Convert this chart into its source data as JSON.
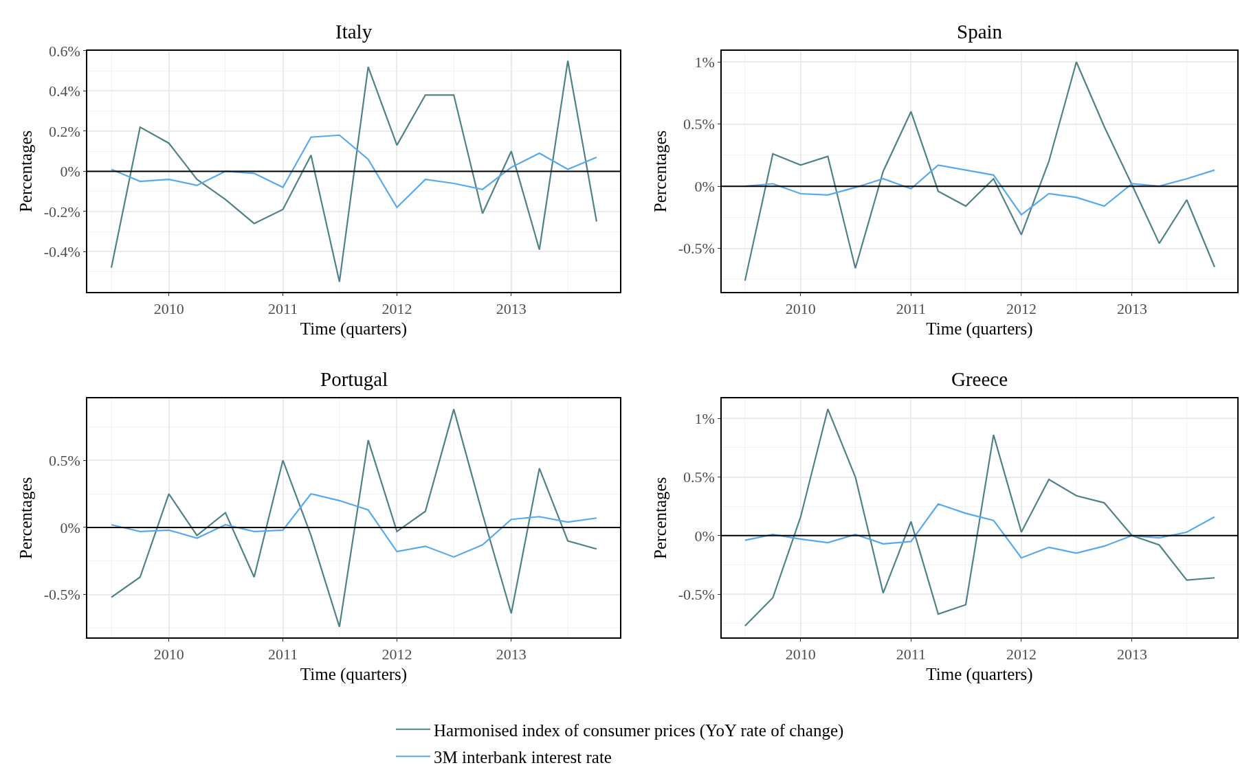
{
  "chart_data": [
    {
      "type": "line",
      "title": "Italy",
      "xlabel": "Time (quarters)",
      "ylabel": "Percentages",
      "x": [
        "2009-07",
        "2009-10",
        "2010-01",
        "2010-04",
        "2010-07",
        "2010-10",
        "2011-01",
        "2011-04",
        "2011-07",
        "2011-10",
        "2012-01",
        "2012-04",
        "2012-07",
        "2012-10",
        "2013-01",
        "2013-04",
        "2013-07",
        "2013-10"
      ],
      "series": [
        {
          "name": "Harmonised index of consumer prices (YoY rate of change)",
          "color": "#4e8287",
          "values": [
            -0.48,
            0.22,
            0.14,
            -0.04,
            -0.14,
            -0.26,
            -0.19,
            0.08,
            -0.55,
            0.52,
            0.13,
            0.38,
            0.38,
            -0.21,
            0.1,
            -0.39,
            0.55,
            -0.25
          ]
        },
        {
          "name": "3M interbank interest rate",
          "color": "#56a9ef",
          "values": [
            0.01,
            -0.05,
            -0.04,
            -0.07,
            0.0,
            -0.01,
            -0.08,
            0.17,
            0.18,
            0.06,
            -0.18,
            -0.04,
            -0.06,
            -0.09,
            0.02,
            0.09,
            0.01,
            0.07
          ]
        }
      ],
      "xlim": [
        "2009-04-15",
        "2013-12-15"
      ],
      "xticks": [
        {
          "value": "2009-07",
          "label": null
        },
        {
          "value": "2010-01",
          "label": "2010"
        },
        {
          "value": "2010-07",
          "label": null
        },
        {
          "value": "2011-01",
          "label": "2011"
        },
        {
          "value": "2011-07",
          "label": null
        },
        {
          "value": "2012-01",
          "label": "2012"
        },
        {
          "value": "2012-07",
          "label": null
        },
        {
          "value": "2013-01",
          "label": "2013"
        },
        {
          "value": "2013-07",
          "label": null
        }
      ],
      "ylim": [
        -0.6,
        0.6
      ],
      "yticks": [
        {
          "value": -0.5,
          "label": null
        },
        {
          "value": -0.4,
          "label": "-0.4%"
        },
        {
          "value": -0.3,
          "label": null
        },
        {
          "value": -0.2,
          "label": "-0.2%"
        },
        {
          "value": -0.1,
          "label": null
        },
        {
          "value": 0,
          "label": "0%"
        },
        {
          "value": 0.1,
          "label": null
        },
        {
          "value": 0.2,
          "label": "0.2%"
        },
        {
          "value": 0.3,
          "label": null
        },
        {
          "value": 0.4,
          "label": "0.4%"
        },
        {
          "value": 0.5,
          "label": null
        },
        {
          "value": 0.6,
          "label": "0.6%"
        }
      ],
      "ref_lines": [
        {
          "axis": "y",
          "value": 0,
          "color": "#000000"
        }
      ],
      "grid": true,
      "legend": "bottom"
    },
    {
      "type": "line",
      "title": "Spain",
      "xlabel": "Time (quarters)",
      "ylabel": "Percentages",
      "x": [
        "2009-07",
        "2009-10",
        "2010-01",
        "2010-04",
        "2010-07",
        "2010-10",
        "2011-01",
        "2011-04",
        "2011-07",
        "2011-10",
        "2012-01",
        "2012-04",
        "2012-07",
        "2012-10",
        "2013-01",
        "2013-04",
        "2013-07",
        "2013-10"
      ],
      "series": [
        {
          "name": "Harmonised index of consumer prices (YoY rate of change)",
          "color": "#4e8287",
          "values": [
            -0.76,
            0.26,
            0.17,
            0.24,
            -0.66,
            0.12,
            0.6,
            -0.04,
            -0.16,
            0.06,
            -0.39,
            0.2,
            1.0,
            0.48,
            0.01,
            -0.46,
            -0.11,
            -0.65
          ]
        },
        {
          "name": "3M interbank interest rate",
          "color": "#56a9ef",
          "values": [
            0.0,
            0.02,
            -0.06,
            -0.07,
            -0.01,
            0.06,
            -0.02,
            0.17,
            0.13,
            0.09,
            -0.23,
            -0.06,
            -0.09,
            -0.16,
            0.02,
            0.0,
            0.06,
            0.13
          ]
        }
      ],
      "xlim": [
        "2009-04-15",
        "2013-12-15"
      ],
      "xticks": [
        {
          "value": "2009-07",
          "label": null
        },
        {
          "value": "2010-01",
          "label": "2010"
        },
        {
          "value": "2010-07",
          "label": null
        },
        {
          "value": "2011-01",
          "label": "2011"
        },
        {
          "value": "2011-07",
          "label": null
        },
        {
          "value": "2012-01",
          "label": "2012"
        },
        {
          "value": "2012-07",
          "label": null
        },
        {
          "value": "2013-01",
          "label": "2013"
        },
        {
          "value": "2013-07",
          "label": null
        }
      ],
      "ylim": [
        -0.85,
        1.09
      ],
      "yticks": [
        {
          "value": -0.75,
          "label": null
        },
        {
          "value": -0.5,
          "label": "-0.5%"
        },
        {
          "value": -0.25,
          "label": null
        },
        {
          "value": 0,
          "label": "0%"
        },
        {
          "value": 0.25,
          "label": null
        },
        {
          "value": 0.5,
          "label": "0.5%"
        },
        {
          "value": 0.75,
          "label": null
        },
        {
          "value": 1,
          "label": "1%"
        }
      ],
      "ref_lines": [
        {
          "axis": "y",
          "value": 0,
          "color": "#000000"
        }
      ],
      "grid": true,
      "legend": "bottom"
    },
    {
      "type": "line",
      "title": "Portugal",
      "xlabel": "Time (quarters)",
      "ylabel": "Percentages",
      "x": [
        "2009-07",
        "2009-10",
        "2010-01",
        "2010-04",
        "2010-07",
        "2010-10",
        "2011-01",
        "2011-04",
        "2011-07",
        "2011-10",
        "2012-01",
        "2012-04",
        "2012-07",
        "2012-10",
        "2013-01",
        "2013-04",
        "2013-07",
        "2013-10"
      ],
      "series": [
        {
          "name": "Harmonised index of consumer prices (YoY rate of change)",
          "color": "#4e8287",
          "values": [
            -0.52,
            -0.37,
            0.25,
            -0.06,
            0.11,
            -0.37,
            0.5,
            -0.06,
            -0.74,
            0.65,
            -0.03,
            0.12,
            0.88,
            0.1,
            -0.64,
            0.44,
            -0.1,
            -0.16
          ]
        },
        {
          "name": "3M interbank interest rate",
          "color": "#56a9ef",
          "values": [
            0.02,
            -0.03,
            -0.02,
            -0.08,
            0.02,
            -0.03,
            -0.02,
            0.25,
            0.2,
            0.13,
            -0.18,
            -0.14,
            -0.22,
            -0.13,
            0.06,
            0.08,
            0.04,
            0.07
          ]
        }
      ],
      "xlim": [
        "2009-04-15",
        "2013-12-15"
      ],
      "xticks": [
        {
          "value": "2009-07",
          "label": null
        },
        {
          "value": "2010-01",
          "label": "2010"
        },
        {
          "value": "2010-07",
          "label": null
        },
        {
          "value": "2011-01",
          "label": "2011"
        },
        {
          "value": "2011-07",
          "label": null
        },
        {
          "value": "2012-01",
          "label": "2012"
        },
        {
          "value": "2012-07",
          "label": null
        },
        {
          "value": "2013-01",
          "label": "2013"
        },
        {
          "value": "2013-07",
          "label": null
        }
      ],
      "ylim": [
        -0.82,
        0.96
      ],
      "yticks": [
        {
          "value": -0.75,
          "label": null
        },
        {
          "value": -0.5,
          "label": "-0.5%"
        },
        {
          "value": -0.25,
          "label": null
        },
        {
          "value": 0,
          "label": "0%"
        },
        {
          "value": 0.25,
          "label": null
        },
        {
          "value": 0.5,
          "label": "0.5%"
        },
        {
          "value": 0.75,
          "label": null
        }
      ],
      "ref_lines": [
        {
          "axis": "y",
          "value": 0,
          "color": "#000000"
        }
      ],
      "grid": true,
      "legend": "bottom"
    },
    {
      "type": "line",
      "title": "Greece",
      "xlabel": "Time (quarters)",
      "ylabel": "Percentages",
      "x": [
        "2009-07",
        "2009-10",
        "2010-01",
        "2010-04",
        "2010-07",
        "2010-10",
        "2011-01",
        "2011-04",
        "2011-07",
        "2011-10",
        "2012-01",
        "2012-04",
        "2012-07",
        "2012-10",
        "2013-01",
        "2013-04",
        "2013-07",
        "2013-10"
      ],
      "series": [
        {
          "name": "Harmonised index of consumer prices (YoY rate of change)",
          "color": "#4e8287",
          "values": [
            -0.77,
            -0.53,
            0.16,
            1.08,
            0.5,
            -0.49,
            0.12,
            -0.67,
            -0.59,
            0.86,
            0.03,
            0.48,
            0.34,
            0.28,
            0.0,
            -0.08,
            -0.38,
            -0.36
          ]
        },
        {
          "name": "3M interbank interest rate",
          "color": "#56a9ef",
          "values": [
            -0.04,
            0.01,
            -0.03,
            -0.06,
            0.01,
            -0.07,
            -0.05,
            0.27,
            0.19,
            0.13,
            -0.19,
            -0.1,
            -0.15,
            -0.09,
            0.0,
            -0.02,
            0.03,
            0.16
          ]
        }
      ],
      "xlim": [
        "2009-04-15",
        "2013-12-15"
      ],
      "xticks": [
        {
          "value": "2009-07",
          "label": null
        },
        {
          "value": "2010-01",
          "label": "2010"
        },
        {
          "value": "2010-07",
          "label": null
        },
        {
          "value": "2011-01",
          "label": "2011"
        },
        {
          "value": "2011-07",
          "label": null
        },
        {
          "value": "2012-01",
          "label": "2012"
        },
        {
          "value": "2012-07",
          "label": null
        },
        {
          "value": "2013-01",
          "label": "2013"
        },
        {
          "value": "2013-07",
          "label": null
        }
      ],
      "ylim": [
        -0.87,
        1.17
      ],
      "yticks": [
        {
          "value": -0.75,
          "label": null
        },
        {
          "value": -0.5,
          "label": "-0.5%"
        },
        {
          "value": -0.25,
          "label": null
        },
        {
          "value": 0,
          "label": "0%"
        },
        {
          "value": 0.25,
          "label": null
        },
        {
          "value": 0.5,
          "label": "0.5%"
        },
        {
          "value": 0.75,
          "label": null
        },
        {
          "value": 1,
          "label": "1%"
        }
      ],
      "ref_lines": [
        {
          "axis": "y",
          "value": 0,
          "color": "#000000"
        }
      ],
      "grid": true,
      "legend": "bottom"
    }
  ]
}
